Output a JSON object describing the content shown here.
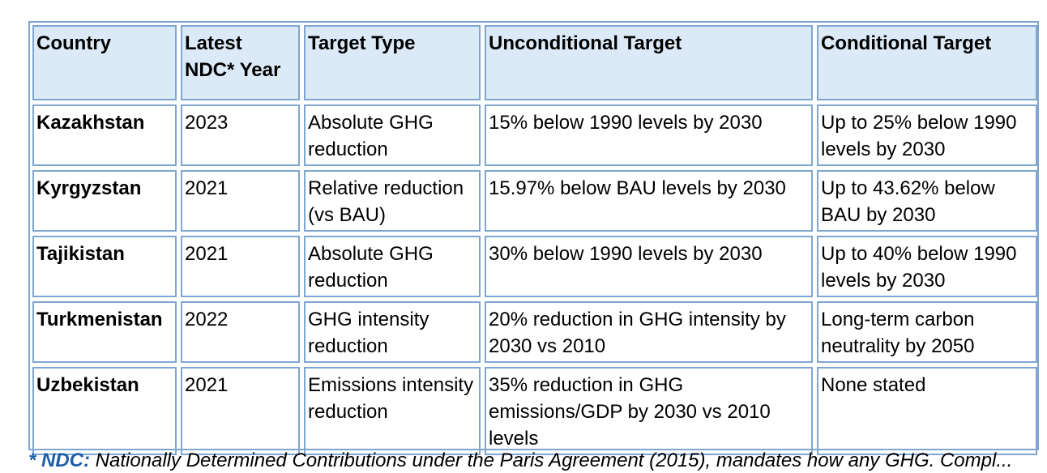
{
  "table": {
    "headers": [
      "Country",
      "Latest NDC* Year",
      "Target Type",
      "Unconditional Target",
      "Conditional Target"
    ],
    "rows": [
      {
        "country": "Kazakhstan",
        "year": "2023",
        "target_type": "Absolute GHG reduction",
        "unconditional": "15% below 1990 levels by 2030",
        "conditional": "Up to 25% below 1990 levels by 2030"
      },
      {
        "country": "Kyrgyzstan",
        "year": "2021",
        "target_type": "Relative reduction (vs BAU)",
        "unconditional": "15.97% below BAU levels by 2030",
        "conditional": "Up to 43.62% below BAU by 2030"
      },
      {
        "country": "Tajikistan",
        "year": "2021",
        "target_type": "Absolute GHG reduction",
        "unconditional": "30% below 1990 levels by 2030",
        "conditional": "Up to 40% below 1990 levels by 2030"
      },
      {
        "country": "Turkmenistan",
        "year": "2022",
        "target_type": "GHG intensity reduction",
        "unconditional": "20% reduction in GHG intensity by 2030 vs 2010",
        "conditional": "Long-term carbon neutrality by 2050"
      },
      {
        "country": "Uzbekistan",
        "year": "2021",
        "target_type": "Emissions intensity reduction",
        "unconditional": "35% reduction in GHG emissions/GDP by 2030 vs 2010 levels",
        "conditional": "None stated"
      }
    ]
  },
  "footnote": {
    "key": "* NDC:",
    "text": " Nationally Determined Contributions under the Paris Agreement (2015), mandates how any GHG. Compl..."
  },
  "colors": {
    "border": "#7fa6d0",
    "header_bg": "#dceaf7",
    "footnote_key": "#1f5fa8"
  }
}
